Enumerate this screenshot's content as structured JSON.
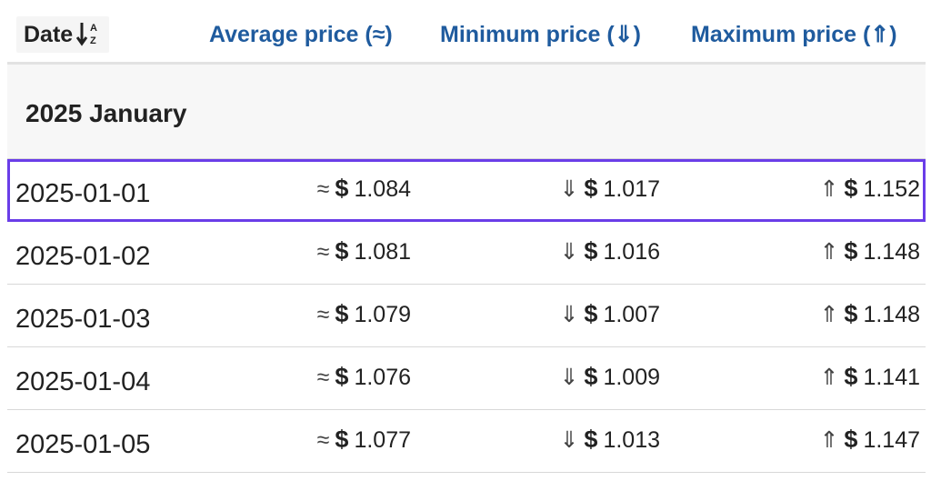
{
  "header": {
    "date_label": "Date",
    "avg_label": "Average price (≈)",
    "min_label": "Minimum price (⇓)",
    "max_label": "Maximum price (⇑)",
    "sort_icon": "sort-alpha-down-icon"
  },
  "month_group": {
    "title": "2025 January"
  },
  "symbols": {
    "avg": "≈",
    "min": "⇓",
    "max": "⇑",
    "currency": "$"
  },
  "rows": [
    {
      "date": "2025-01-01",
      "avg": "1.084",
      "min": "1.017",
      "max": "1.152",
      "selected": true
    },
    {
      "date": "2025-01-02",
      "avg": "1.081",
      "min": "1.016",
      "max": "1.148",
      "selected": false
    },
    {
      "date": "2025-01-03",
      "avg": "1.079",
      "min": "1.007",
      "max": "1.148",
      "selected": false
    },
    {
      "date": "2025-01-04",
      "avg": "1.076",
      "min": "1.009",
      "max": "1.141",
      "selected": false
    },
    {
      "date": "2025-01-05",
      "avg": "1.077",
      "min": "1.013",
      "max": "1.147",
      "selected": false
    }
  ],
  "colors": {
    "header_link": "#1f5b9e",
    "selection_outline": "#6a3de8"
  }
}
